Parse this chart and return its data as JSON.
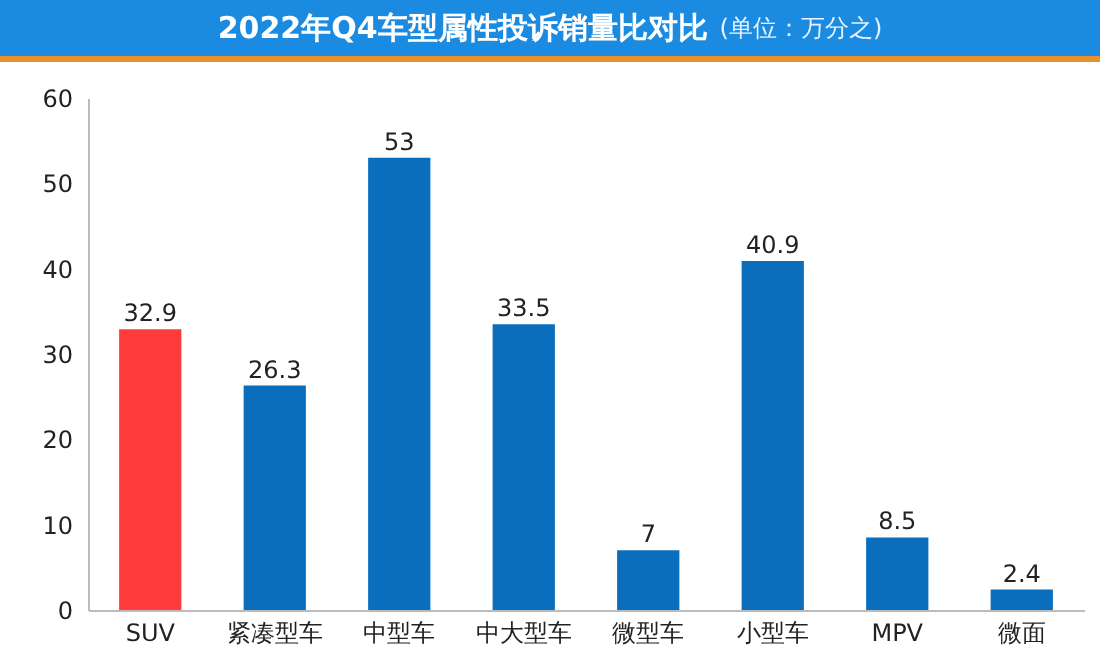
{
  "chart_data": {
    "type": "bar",
    "title": "2022年Q4车型属性投诉销量比对比",
    "subtitle": "(单位：万分之)",
    "categories": [
      "SUV",
      "紧凑型车",
      "中型车",
      "中大型车",
      "微型车",
      "小型车",
      "MPV",
      "微面"
    ],
    "values": [
      32.9,
      26.3,
      53,
      33.5,
      7,
      40.9,
      8.5,
      2.4
    ],
    "colors": [
      "#ff3b3b",
      "#0a6ebd",
      "#0a6ebd",
      "#0a6ebd",
      "#0a6ebd",
      "#0a6ebd",
      "#0a6ebd",
      "#0a6ebd"
    ],
    "ylim": [
      0,
      60
    ],
    "yticks": [
      0,
      10,
      20,
      30,
      40,
      50,
      60
    ],
    "grid": false,
    "data_labels": true
  }
}
